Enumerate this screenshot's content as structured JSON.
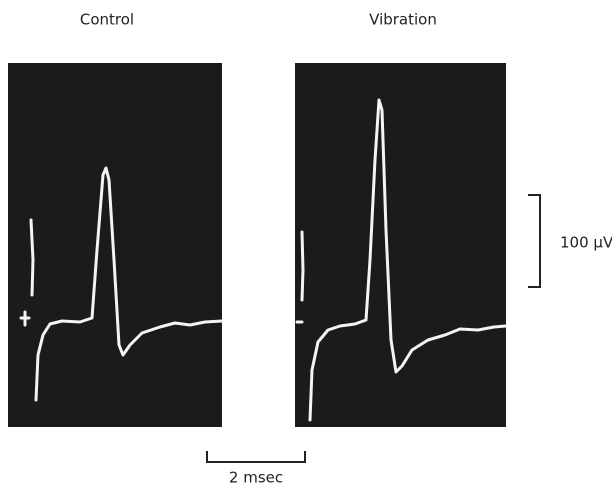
{
  "panels": [
    {
      "label": "Control"
    },
    {
      "label": "Vibration"
    }
  ],
  "scale_bars": {
    "voltage": "100 μV",
    "time": "2 msec"
  }
}
